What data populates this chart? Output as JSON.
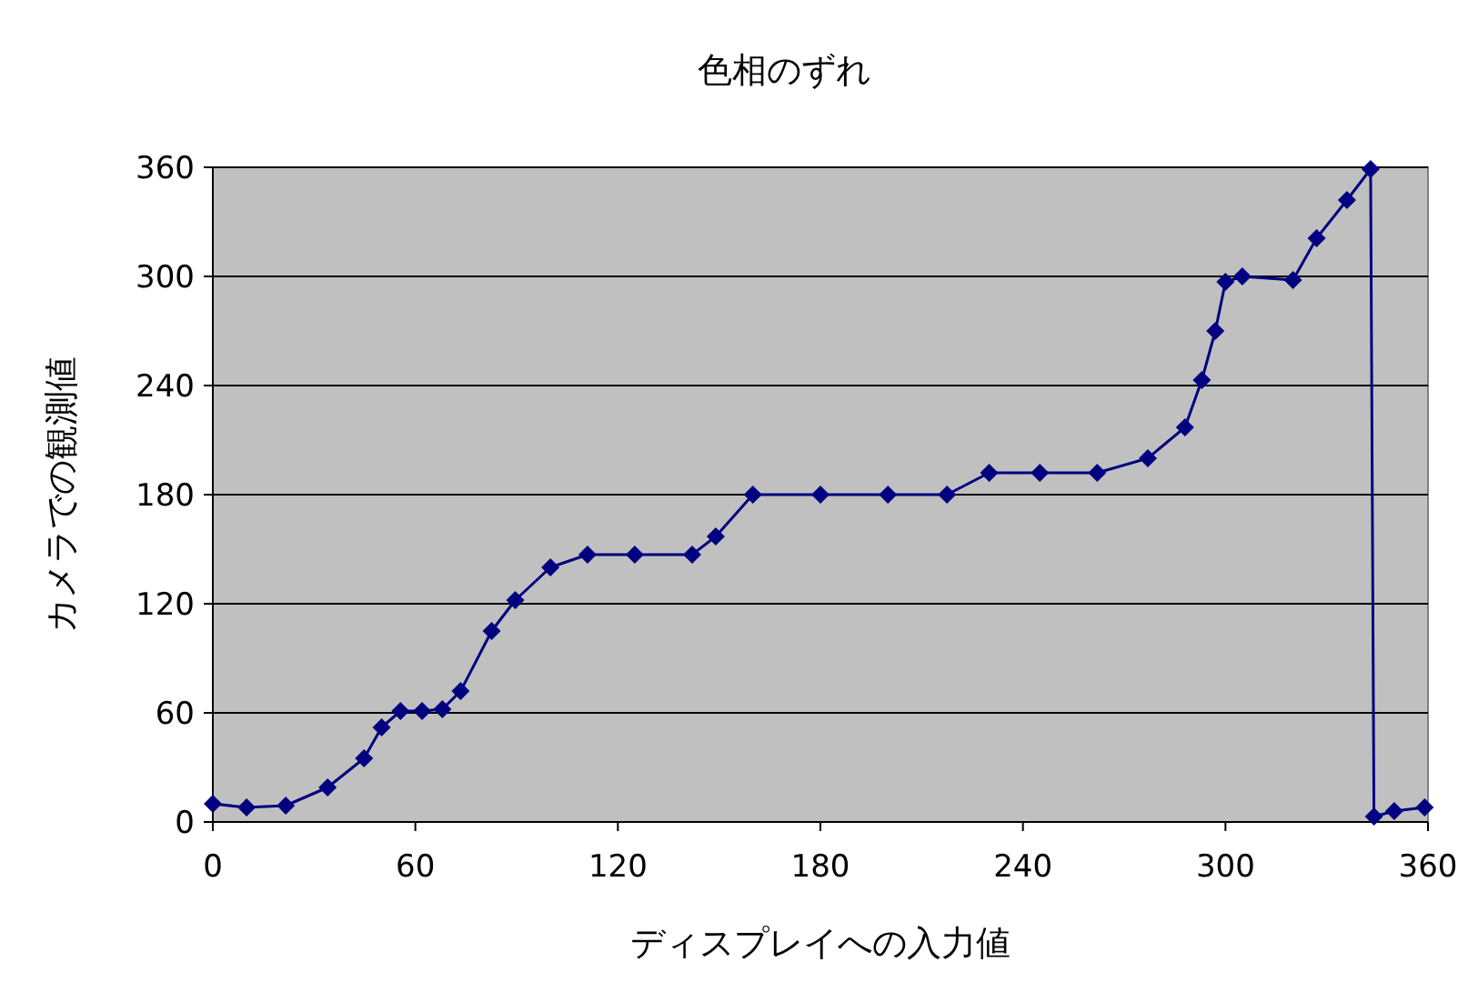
{
  "chart_data": {
    "type": "line",
    "title": "色相のずれ",
    "xlabel": "ディスプレイへの入力値",
    "ylabel": "カメラでの観測値",
    "x": [
      0,
      10,
      21.6,
      34,
      44.8,
      50,
      55.6,
      62,
      68,
      73.4,
      82.6,
      89.6,
      100,
      111,
      125,
      142,
      149,
      160,
      180,
      200,
      217.5,
      230,
      245,
      262,
      277,
      288,
      293,
      297,
      300,
      305,
      320,
      327,
      336,
      343,
      344,
      350,
      359
    ],
    "series": [
      {
        "color": "#000080",
        "values": [
          10,
          8,
          9,
          19,
          35,
          52,
          61,
          61,
          62,
          72,
          105,
          122,
          140,
          147,
          147,
          147,
          157,
          180,
          180,
          180,
          180,
          192,
          192,
          192,
          200,
          217,
          243,
          270,
          297,
          300,
          298,
          321,
          342,
          359,
          3,
          6,
          8
        ]
      }
    ],
    "xlim": [
      0,
      360
    ],
    "ylim": [
      0,
      360
    ],
    "xticks": [
      0,
      60,
      120,
      180,
      240,
      300,
      360
    ],
    "yticks": [
      0,
      60,
      120,
      180,
      240,
      300,
      360
    ],
    "grid": "y",
    "marker": "diamond",
    "line_style": "solid"
  }
}
